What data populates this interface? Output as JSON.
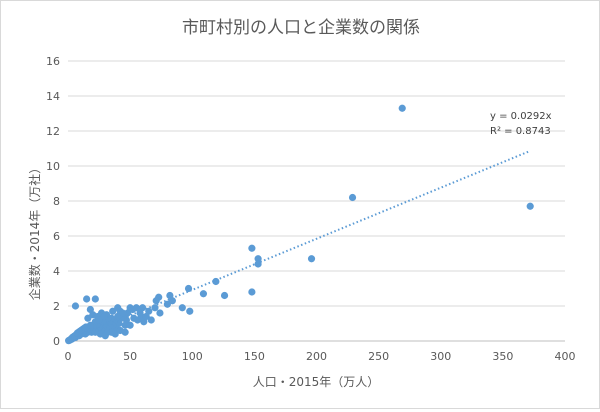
{
  "chart_data": {
    "type": "scatter",
    "title": "市町村別の人口と企業数の関係",
    "xlabel": "人口・2015年（万人）",
    "ylabel": "企業数・2014年（万社）",
    "xlim": [
      0,
      400
    ],
    "ylim": [
      0,
      16
    ],
    "x_ticks": [
      "0",
      "50",
      "100",
      "150",
      "200",
      "250",
      "300",
      "350",
      "400"
    ],
    "y_ticks": [
      "0",
      "2",
      "4",
      "6",
      "8",
      "10",
      "12",
      "14",
      "16"
    ],
    "grid": "horizontal",
    "marker_color": "#5b9bd5",
    "trendline": {
      "type": "linear",
      "slope": 0.0292,
      "x_range": [
        0,
        372
      ],
      "style": "dotted",
      "equation": "y = 0.0292x",
      "r2": "R² = 0.8743"
    },
    "points": [
      [
        269,
        13.3
      ],
      [
        372,
        7.7
      ],
      [
        229,
        8.2
      ],
      [
        196,
        4.7
      ],
      [
        148,
        5.3
      ],
      [
        153,
        4.7
      ],
      [
        153,
        4.4
      ],
      [
        148,
        2.8
      ],
      [
        126,
        2.6
      ],
      [
        119,
        3.4
      ],
      [
        109,
        2.7
      ],
      [
        97,
        3.0
      ],
      [
        98,
        1.7
      ],
      [
        92,
        1.9
      ],
      [
        82,
        2.6
      ],
      [
        84,
        2.3
      ],
      [
        80,
        2.1
      ],
      [
        73,
        2.5
      ],
      [
        71,
        2.3
      ],
      [
        70,
        1.9
      ],
      [
        74,
        1.6
      ],
      [
        65,
        1.7
      ],
      [
        59,
        1.4
      ],
      [
        60,
        1.9
      ],
      [
        61,
        1.1
      ],
      [
        55,
        1.9
      ],
      [
        52,
        1.8
      ],
      [
        50,
        1.9
      ],
      [
        48,
        1.6
      ],
      [
        47,
        1.2
      ],
      [
        46,
        0.9
      ],
      [
        45,
        1.5
      ],
      [
        43,
        1.3
      ],
      [
        42,
        1.7
      ],
      [
        41,
        1.0
      ],
      [
        40,
        1.4
      ],
      [
        39,
        0.7
      ],
      [
        38,
        1.2
      ],
      [
        37,
        1.1
      ],
      [
        36,
        0.9
      ],
      [
        35,
        1.3
      ],
      [
        34,
        0.8
      ],
      [
        33,
        1.1
      ],
      [
        32,
        1.3
      ],
      [
        31,
        0.7
      ],
      [
        30,
        1.2
      ],
      [
        29,
        0.9
      ],
      [
        28,
        1.1
      ],
      [
        27,
        0.6
      ],
      [
        26,
        1.0
      ],
      [
        25,
        0.8
      ],
      [
        24,
        0.7
      ],
      [
        23,
        0.9
      ],
      [
        22,
        1.1
      ],
      [
        21,
        0.6
      ],
      [
        20,
        0.8
      ],
      [
        19,
        0.5
      ],
      [
        18,
        0.7
      ],
      [
        17,
        0.6
      ],
      [
        16,
        0.5
      ],
      [
        15,
        0.7
      ],
      [
        14,
        0.4
      ],
      [
        13,
        0.6
      ],
      [
        12,
        0.5
      ],
      [
        11,
        0.4
      ],
      [
        10,
        0.5
      ],
      [
        9,
        0.3
      ],
      [
        8,
        0.4
      ],
      [
        7,
        0.3
      ],
      [
        6,
        0.2
      ],
      [
        5,
        0.2
      ],
      [
        4,
        0.15
      ],
      [
        3,
        0.1
      ],
      [
        2,
        0.08
      ],
      [
        1.5,
        0.05
      ],
      [
        1,
        0.04
      ],
      [
        0.5,
        0.02
      ],
      [
        2.5,
        0.12
      ],
      [
        3.5,
        0.2
      ],
      [
        4.5,
        0.25
      ],
      [
        5.5,
        0.3
      ],
      [
        6.5,
        0.35
      ],
      [
        7.5,
        0.45
      ],
      [
        8.5,
        0.5
      ],
      [
        9.5,
        0.55
      ],
      [
        10.5,
        0.6
      ],
      [
        11.5,
        0.65
      ],
      [
        12.5,
        0.7
      ],
      [
        13.5,
        0.75
      ],
      [
        14.5,
        0.8
      ],
      [
        6,
        2.0
      ],
      [
        15,
        2.4
      ],
      [
        18,
        1.8
      ],
      [
        22,
        2.4
      ],
      [
        27,
        1.6
      ],
      [
        31,
        1.5
      ],
      [
        36,
        1.7
      ],
      [
        40,
        1.9
      ],
      [
        44,
        1.6
      ],
      [
        16,
        1.3
      ],
      [
        20,
        1.5
      ],
      [
        24,
        1.4
      ],
      [
        28,
        1.5
      ],
      [
        32,
        0.5
      ],
      [
        26,
        0.4
      ],
      [
        30,
        0.3
      ],
      [
        35,
        0.5
      ],
      [
        38,
        0.4
      ],
      [
        42,
        0.6
      ],
      [
        46,
        0.5
      ],
      [
        50,
        0.9
      ],
      [
        53,
        1.3
      ],
      [
        56,
        1.2
      ],
      [
        58,
        1.6
      ],
      [
        63,
        1.4
      ],
      [
        67,
        1.2
      ],
      [
        18,
        0.9
      ],
      [
        22,
        0.5
      ],
      [
        25,
        1.2
      ],
      [
        29,
        1.4
      ]
    ]
  }
}
